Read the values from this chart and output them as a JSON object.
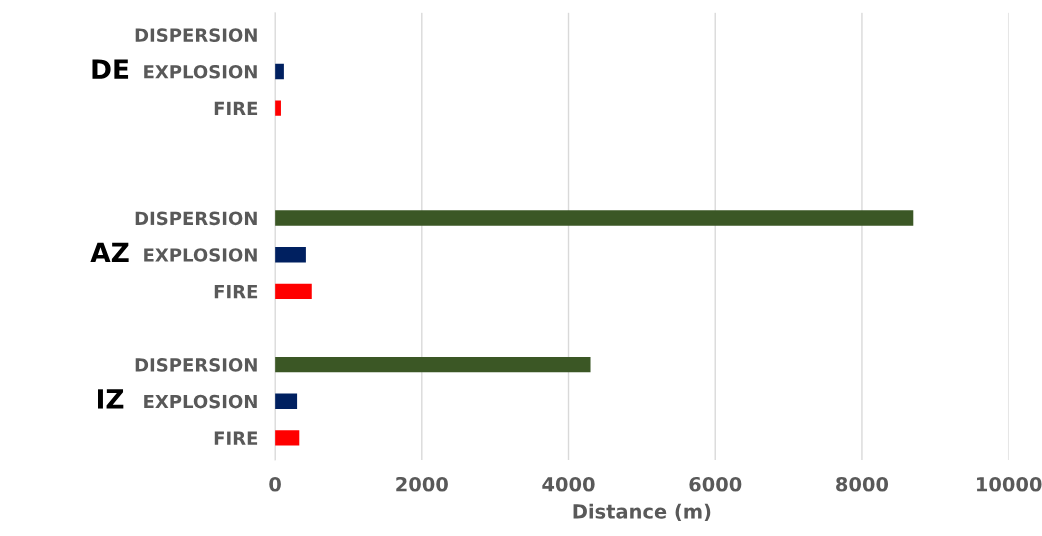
{
  "chart_data": {
    "type": "bar",
    "orientation": "horizontal",
    "categories": [
      "DISPERSION",
      "EXPLOSION",
      "FIRE",
      null,
      null,
      "DISPERSION",
      "EXPLOSION",
      "FIRE",
      null,
      "DISPERSION",
      "EXPLOSION",
      "FIRE"
    ],
    "values": [
      0,
      120,
      80,
      null,
      null,
      8700,
      420,
      500,
      null,
      4300,
      300,
      330
    ],
    "colors": [
      "#3b5725",
      "#002060",
      "#ff0000",
      null,
      null,
      "#3b5725",
      "#002060",
      "#ff0000",
      null,
      "#3b5725",
      "#002060",
      "#ff0000"
    ],
    "xlabel": "Distance (m)",
    "xlim": [
      0,
      10000
    ],
    "xticks": [
      0,
      2000,
      4000,
      6000,
      8000,
      10000
    ],
    "grid": "x",
    "annotations": [
      "DE",
      "AZ",
      "IZ"
    ]
  }
}
